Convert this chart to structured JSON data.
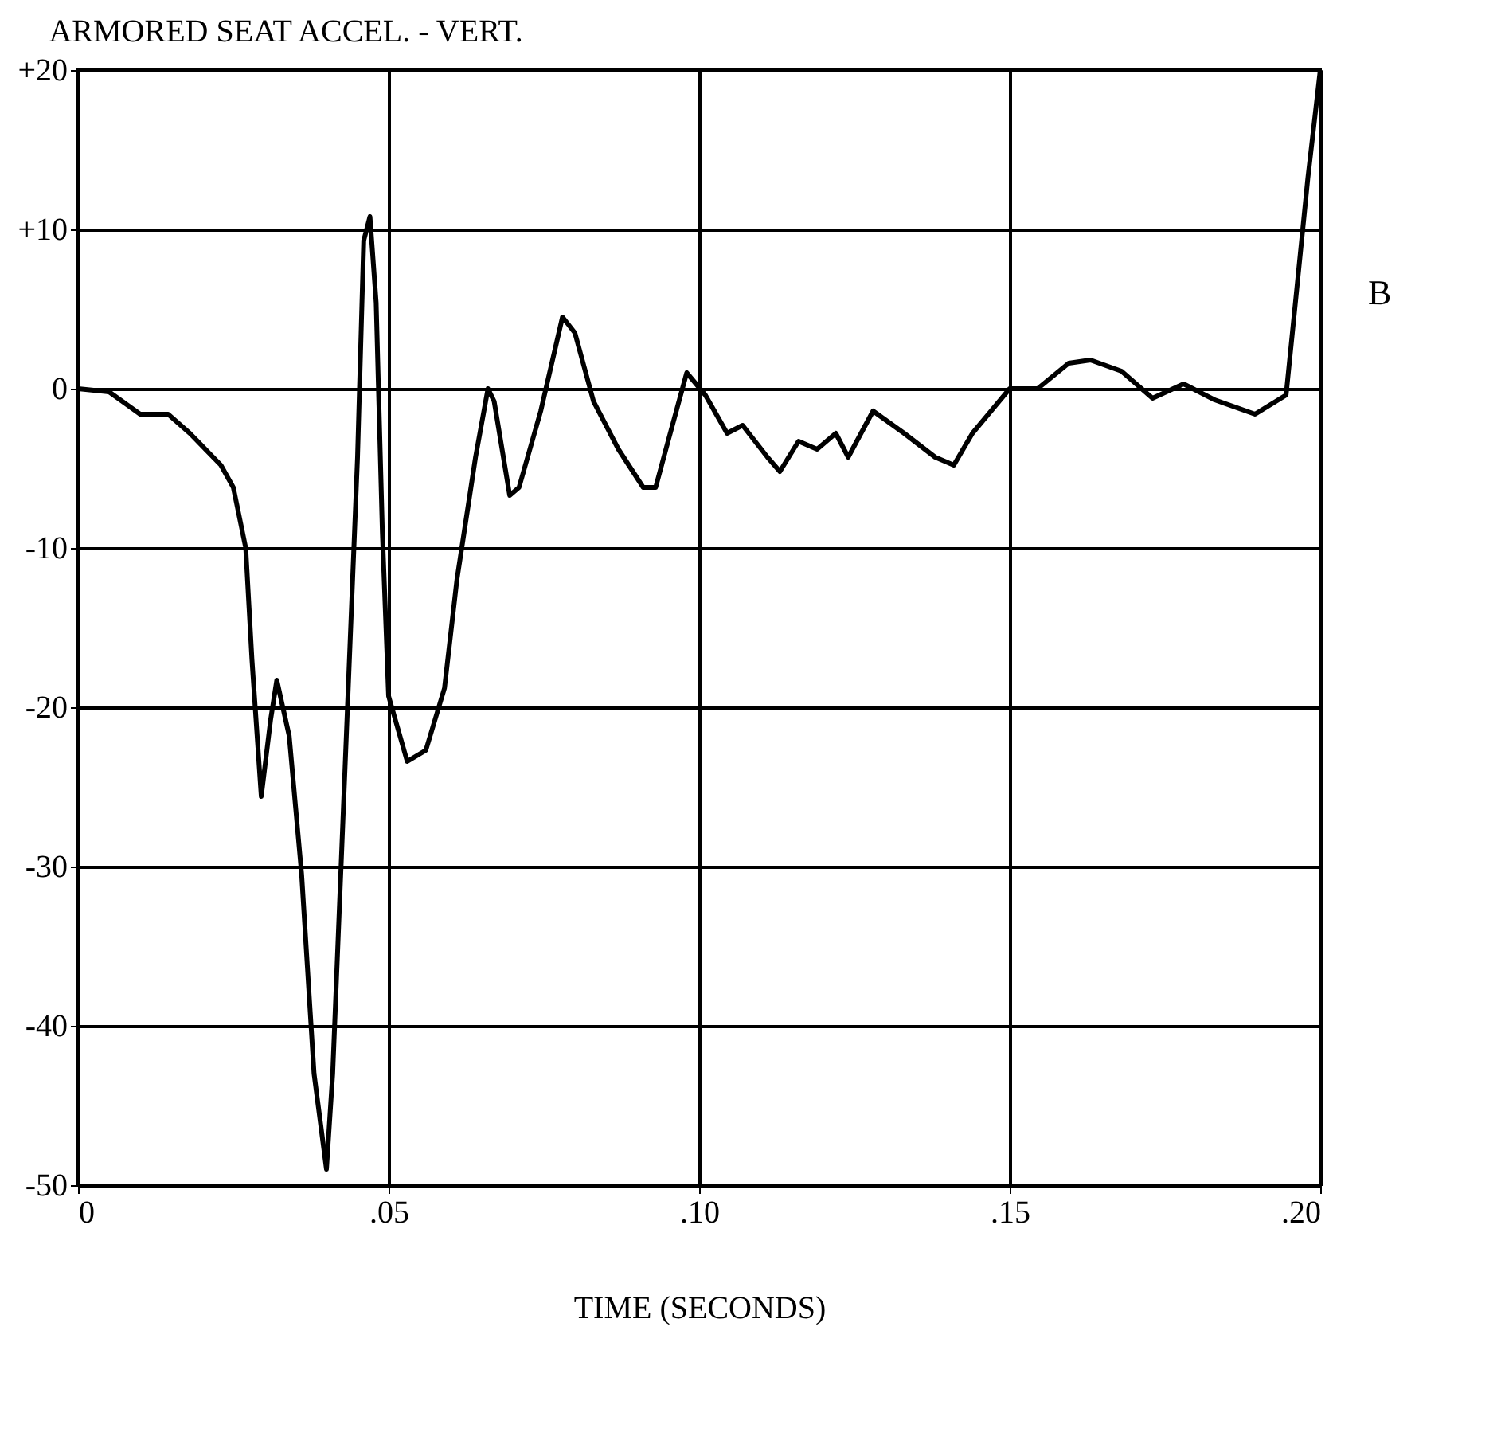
{
  "chart_data": {
    "type": "line",
    "title": "ARMORED SEAT ACCEL. - VERT.",
    "xlabel": "TIME (SECONDS)",
    "annotations": [
      "B"
    ],
    "x": [
      0,
      0.005,
      0.01,
      0.0145,
      0.018,
      0.023,
      0.025,
      0.027,
      0.028,
      0.0295,
      0.031,
      0.032,
      0.034,
      0.036,
      0.038,
      0.04,
      0.041,
      0.043,
      0.045,
      0.046,
      0.047,
      0.048,
      0.049,
      0.05,
      0.053,
      0.056,
      0.059,
      0.061,
      0.064,
      0.066,
      0.067,
      0.0695,
      0.071,
      0.0745,
      0.078,
      0.08,
      0.083,
      0.087,
      0.091,
      0.093,
      0.095,
      0.098,
      0.101,
      0.1045,
      0.107,
      0.111,
      0.113,
      0.116,
      0.119,
      0.122,
      0.124,
      0.128,
      0.133,
      0.138,
      0.141,
      0.144,
      0.15,
      0.1545,
      0.1595,
      0.163,
      0.168,
      0.173,
      0.178,
      0.183,
      0.1895,
      0.1945,
      0.196,
      0.198,
      0.2
    ],
    "series": [
      {
        "color": "#000000",
        "values": [
          0,
          -0.2,
          -1.6,
          -1.6,
          -2.8,
          -4.8,
          -6.2,
          -10,
          -17,
          -25.6,
          -20.8,
          -18.3,
          -21.8,
          -30.5,
          -43,
          -49,
          -43,
          -23.7,
          -4.3,
          9.3,
          10.8,
          5.4,
          -9,
          -19.3,
          -23.4,
          -22.7,
          -18.8,
          -12,
          -4.3,
          0,
          -0.8,
          -6.7,
          -6.2,
          -1.4,
          4.5,
          3.5,
          -0.8,
          -3.8,
          -6.2,
          -6.2,
          -3.3,
          1,
          -0.4,
          -2.8,
          -2.3,
          -4.3,
          -5.2,
          -3.3,
          -3.8,
          -2.8,
          -4.3,
          -1.4,
          -2.8,
          -4.3,
          -4.8,
          -2.8,
          0,
          0,
          1.6,
          1.8,
          1.1,
          -0.6,
          0.3,
          -0.7,
          -1.6,
          -0.4,
          5.4,
          13.2,
          20
        ]
      }
    ],
    "xlim": [
      0,
      0.2
    ],
    "xticks": [
      0,
      {
        "value": 0.05,
        "label": ".05"
      },
      {
        "value": 0.1,
        "label": ".10"
      },
      {
        "value": 0.15,
        "label": ".15"
      },
      {
        "value": 0.2,
        "label": ".20"
      }
    ],
    "ylim": [
      -50,
      20
    ],
    "yticks": [
      {
        "value": 20,
        "label": "+20"
      },
      {
        "value": 10,
        "label": "+10"
      },
      0,
      -10,
      -20,
      -30,
      -40,
      -50
    ],
    "grid": true,
    "marker": "none",
    "line_style": "solid"
  }
}
